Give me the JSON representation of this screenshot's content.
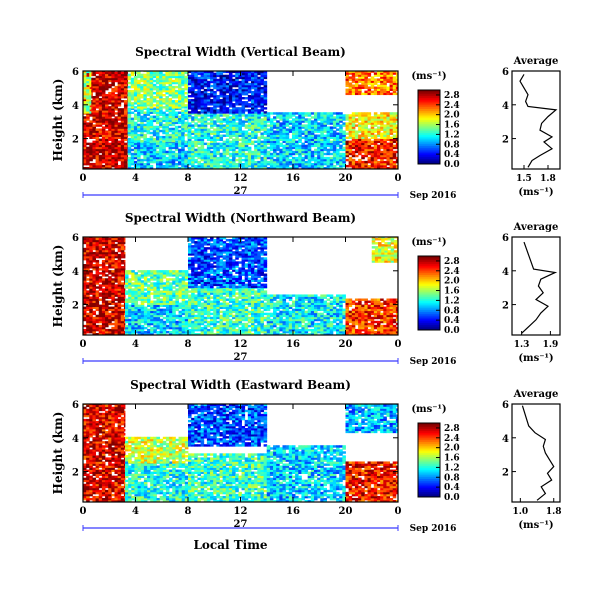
{
  "chart_data": [
    {
      "type": "heatmap",
      "title": "Spectral Width (Vertical Beam)",
      "ylabel": "Height (km)",
      "x_tick_labels": [
        "0",
        "4",
        "8",
        "12",
        "16",
        "20",
        "0"
      ],
      "y_tick_labels": [
        "2",
        "4",
        "6"
      ],
      "xlim": [
        0,
        24
      ],
      "ylim": [
        0.2,
        6
      ],
      "date_center": "27",
      "date_right": "Sep 2016",
      "colorbar": {
        "unit": "(ms⁻¹)",
        "tick_labels": [
          "0.0",
          "0.4",
          "0.8",
          "1.2",
          "1.6",
          "2.0",
          "2.4",
          "2.8"
        ],
        "range": [
          0,
          3.0
        ]
      },
      "regions": [
        {
          "t0": 0.0,
          "t1": 3.4,
          "h0": 0.2,
          "h1": 6.0,
          "value": 2.75
        },
        {
          "t0": 0.0,
          "t1": 0.6,
          "h0": 3.5,
          "h1": 6.0,
          "value": 1.6
        },
        {
          "t0": 3.4,
          "t1": 8.0,
          "h0": 0.2,
          "h1": 1.8,
          "value": 1.0
        },
        {
          "t0": 3.4,
          "t1": 8.0,
          "h0": 1.8,
          "h1": 3.8,
          "value": 1.2
        },
        {
          "t0": 3.4,
          "t1": 8.0,
          "h0": 3.8,
          "h1": 6.0,
          "value": 1.5
        },
        {
          "t0": 8.0,
          "t1": 14.0,
          "h0": 0.2,
          "h1": 3.5,
          "value": 1.2
        },
        {
          "t0": 8.0,
          "t1": 14.0,
          "h0": 3.5,
          "h1": 6.0,
          "value": 0.4
        },
        {
          "t0": 14.0,
          "t1": 20.0,
          "h0": 0.2,
          "h1": 3.5,
          "value": 1.0
        },
        {
          "t0": 20.0,
          "t1": 24.0,
          "h0": 0.2,
          "h1": 2.0,
          "value": 2.6
        },
        {
          "t0": 20.0,
          "t1": 24.0,
          "h0": 2.0,
          "h1": 3.5,
          "value": 1.9
        },
        {
          "t0": 20.0,
          "t1": 24.0,
          "h0": 4.6,
          "h1": 6.0,
          "value": 2.3
        }
      ],
      "average": {
        "title": "Average",
        "xlabel": "(ms⁻¹)",
        "x_tick_labels": [
          "1.5",
          "1.8"
        ],
        "xlim": [
          1.35,
          1.95
        ],
        "ylim": [
          0.2,
          6
        ],
        "y_tick_labels": [
          "2",
          "4",
          "6"
        ],
        "height": [
          0.3,
          0.7,
          1.0,
          1.4,
          1.8,
          2.1,
          2.5,
          2.9,
          3.3,
          3.7,
          3.9,
          4.2,
          4.6,
          5.0,
          5.4,
          5.8
        ],
        "value": [
          1.55,
          1.6,
          1.7,
          1.85,
          1.75,
          1.85,
          1.7,
          1.72,
          1.8,
          1.9,
          1.55,
          1.52,
          1.55,
          1.5,
          1.45,
          1.5
        ]
      }
    },
    {
      "type": "heatmap",
      "title": "Spectral Width (Northward Beam)",
      "ylabel": "Height (km)",
      "x_tick_labels": [
        "0",
        "4",
        "8",
        "12",
        "16",
        "20",
        "0"
      ],
      "y_tick_labels": [
        "2",
        "4",
        "6"
      ],
      "xlim": [
        0,
        24
      ],
      "ylim": [
        0.2,
        6
      ],
      "date_center": "27",
      "date_right": "Sep 2016",
      "colorbar": {
        "unit": "(ms⁻¹)",
        "tick_labels": [
          "0.0",
          "0.4",
          "0.8",
          "1.2",
          "1.6",
          "2.0",
          "2.4",
          "2.8"
        ],
        "range": [
          0,
          3.0
        ]
      },
      "regions": [
        {
          "t0": 0.0,
          "t1": 3.2,
          "h0": 0.2,
          "h1": 6.0,
          "value": 2.75
        },
        {
          "t0": 3.2,
          "t1": 8.0,
          "h0": 0.2,
          "h1": 2.0,
          "value": 1.0
        },
        {
          "t0": 3.2,
          "t1": 8.0,
          "h0": 2.0,
          "h1": 4.0,
          "value": 1.4
        },
        {
          "t0": 8.0,
          "t1": 14.0,
          "h0": 0.2,
          "h1": 3.0,
          "value": 1.3
        },
        {
          "t0": 8.0,
          "t1": 14.0,
          "h0": 3.0,
          "h1": 6.0,
          "value": 0.6
        },
        {
          "t0": 14.0,
          "t1": 20.0,
          "h0": 0.2,
          "h1": 2.5,
          "value": 1.1
        },
        {
          "t0": 20.0,
          "t1": 24.0,
          "h0": 0.2,
          "h1": 2.3,
          "value": 2.5
        },
        {
          "t0": 22.0,
          "t1": 24.0,
          "h0": 4.5,
          "h1": 6.0,
          "value": 1.8
        }
      ],
      "average": {
        "title": "Average",
        "xlabel": "(ms⁻¹)",
        "x_tick_labels": [
          "1.3",
          "1.9"
        ],
        "xlim": [
          1.1,
          2.1
        ],
        "ylim": [
          0.2,
          6
        ],
        "y_tick_labels": [
          "2",
          "4",
          "6"
        ],
        "height": [
          0.3,
          0.7,
          1.1,
          1.5,
          1.9,
          2.3,
          2.7,
          3.1,
          3.5,
          3.9,
          4.1,
          4.5,
          4.9,
          5.3,
          5.7
        ],
        "value": [
          1.3,
          1.45,
          1.6,
          1.7,
          1.85,
          1.6,
          1.75,
          1.65,
          1.7,
          2.0,
          1.55,
          1.5,
          1.45,
          1.4,
          1.35
        ]
      }
    },
    {
      "type": "heatmap",
      "title": "Spectral Width (Eastward Beam)",
      "ylabel": "Height (km)",
      "xlabel": "Local Time",
      "x_tick_labels": [
        "0",
        "4",
        "8",
        "12",
        "16",
        "20",
        "0"
      ],
      "y_tick_labels": [
        "2",
        "4",
        "6"
      ],
      "xlim": [
        0,
        24
      ],
      "ylim": [
        0.2,
        6
      ],
      "date_center": "27",
      "date_right": "Sep 2016",
      "colorbar": {
        "unit": "(ms⁻¹)",
        "tick_labels": [
          "0.0",
          "0.4",
          "0.8",
          "1.2",
          "1.6",
          "2.0",
          "2.4",
          "2.8"
        ],
        "range": [
          0,
          3.0
        ]
      },
      "regions": [
        {
          "t0": 0.0,
          "t1": 3.2,
          "h0": 0.2,
          "h1": 6.0,
          "value": 2.7
        },
        {
          "t0": 3.2,
          "t1": 8.0,
          "h0": 0.2,
          "h1": 2.5,
          "value": 1.2
        },
        {
          "t0": 3.2,
          "t1": 8.0,
          "h0": 2.5,
          "h1": 4.0,
          "value": 1.7
        },
        {
          "t0": 8.0,
          "t1": 14.0,
          "h0": 0.2,
          "h1": 3.0,
          "value": 1.3
        },
        {
          "t0": 8.0,
          "t1": 14.0,
          "h0": 3.5,
          "h1": 6.0,
          "value": 0.6
        },
        {
          "t0": 14.0,
          "t1": 20.0,
          "h0": 0.2,
          "h1": 3.5,
          "value": 1.0
        },
        {
          "t0": 20.0,
          "t1": 24.0,
          "h0": 0.2,
          "h1": 2.5,
          "value": 2.6
        },
        {
          "t0": 20.0,
          "t1": 24.0,
          "h0": 4.3,
          "h1": 6.0,
          "value": 0.9
        }
      ],
      "average": {
        "title": "Average",
        "xlabel": "(ms⁻¹)",
        "x_tick_labels": [
          "1.0",
          "1.8"
        ],
        "xlim": [
          0.8,
          1.95
        ],
        "ylim": [
          0.2,
          6
        ],
        "y_tick_labels": [
          "2",
          "4",
          "6"
        ],
        "height": [
          0.3,
          0.7,
          1.1,
          1.5,
          1.9,
          2.3,
          2.7,
          3.1,
          3.5,
          3.9,
          4.3,
          4.7,
          5.1,
          5.5,
          5.9
        ],
        "value": [
          1.4,
          1.6,
          1.5,
          1.75,
          1.65,
          1.8,
          1.7,
          1.6,
          1.55,
          1.6,
          1.35,
          1.2,
          1.15,
          1.1,
          1.05
        ]
      }
    }
  ]
}
